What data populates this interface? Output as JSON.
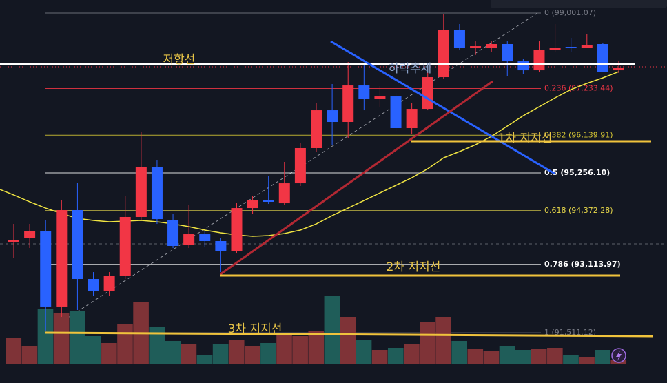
{
  "chart_data": {
    "type": "candlestick",
    "ylim": [
      90334,
      99308
    ],
    "vlim": [
      0,
      528
    ],
    "up_color": "#f23645",
    "down_color": "#2962ff",
    "volume_up_color": "#7f3337",
    "volume_down_color": "#1f5d59",
    "ma_color": "#f0e442",
    "open": [
      93627,
      93739,
      93901,
      92126,
      94385,
      92771,
      92497,
      92852,
      94224,
      95402,
      94143,
      93578,
      93820,
      93659,
      93417,
      94433,
      94611,
      94546,
      95014,
      95838,
      96725,
      96451,
      97306,
      96999,
      97048,
      96306,
      96757,
      97500,
      98598,
      98178,
      98178,
      98275,
      97871,
      97661,
      98146,
      98210,
      98194,
      98275,
      97661
    ],
    "close": [
      93691,
      93901,
      92126,
      94385,
      92771,
      92497,
      92852,
      94224,
      95402,
      94175,
      93546,
      93820,
      93659,
      93417,
      94433,
      94611,
      94579,
      95014,
      95838,
      96725,
      96451,
      97306,
      96999,
      97048,
      96306,
      96757,
      97500,
      98598,
      98178,
      98226,
      98275,
      97871,
      97661,
      98146,
      98194,
      98178,
      98259,
      97629,
      97726
    ],
    "high": [
      94062,
      94062,
      94143,
      94627,
      95031,
      92932,
      92932,
      94708,
      96209,
      95563,
      94304,
      94498,
      93901,
      93739,
      94546,
      94708,
      95192,
      95515,
      95951,
      96887,
      97339,
      97855,
      97823,
      97290,
      97129,
      96887,
      97613,
      98985,
      98743,
      98339,
      98339,
      98339,
      97936,
      98339,
      98743,
      98420,
      98501,
      98307,
      97887
    ],
    "low": [
      93255,
      93497,
      91560,
      91883,
      92045,
      92368,
      92368,
      92771,
      94143,
      94062,
      93497,
      93497,
      93530,
      92932,
      93368,
      94304,
      94530,
      94498,
      94950,
      95757,
      95918,
      96080,
      96725,
      96806,
      96241,
      96160,
      96725,
      97452,
      98129,
      98016,
      98097,
      97532,
      97565,
      97613,
      98097,
      98097,
      98178,
      97613,
      97597
    ],
    "volume": [
      38,
      26,
      80,
      73,
      76,
      40,
      30,
      58,
      90,
      54,
      33,
      28,
      13,
      28,
      35,
      26,
      30,
      43,
      40,
      48,
      98,
      68,
      35,
      20,
      23,
      28,
      60,
      68,
      33,
      22,
      18,
      25,
      20,
      22,
      23,
      13,
      10,
      20,
      6
    ],
    "ma": [
      94740,
      94579,
      94433,
      94304,
      94191,
      94143,
      94111,
      94127,
      94143,
      94111,
      94062,
      93998,
      93917,
      93853,
      93804,
      93772,
      93788,
      93836,
      93917,
      94062,
      94256,
      94433,
      94611,
      94788,
      94966,
      95143,
      95353,
      95611,
      95757,
      95918,
      96112,
      96354,
      96596,
      96806,
      97016,
      97210,
      97355,
      97484,
      97629
    ],
    "fib_levels": [
      {
        "label": "0 (99,001.07)",
        "price": 99001.07,
        "color": "#787b86"
      },
      {
        "label": "0.236 (97,233.44)",
        "price": 97233.44,
        "color": "#f23645"
      },
      {
        "label": "0.382 (96,139.91)",
        "price": 96139.91,
        "color": "#d8c834"
      },
      {
        "label": "0.5 (95,256.10)",
        "price": 95256.1,
        "color": "#ffffff"
      },
      {
        "label": "0.618 (94,372.28)",
        "price": 94372.28,
        "color": "#e8d84a"
      },
      {
        "label": "0.786 (93,113.97)",
        "price": 93113.97,
        "color": "#ffffff"
      },
      {
        "label": "1 (91,511.12)",
        "price": 91511.12,
        "color": "#787b86"
      }
    ],
    "annotations": [
      {
        "text": "저항선",
        "color": "#e8c547"
      },
      {
        "text": "하락추세",
        "color": "#8aa2c8"
      },
      {
        "text": "1차 지지선",
        "color": "#e8c547"
      },
      {
        "text": "2차 지지선",
        "color": "#e8c547"
      },
      {
        "text": "3차 지지선",
        "color": "#e8c547"
      }
    ]
  }
}
